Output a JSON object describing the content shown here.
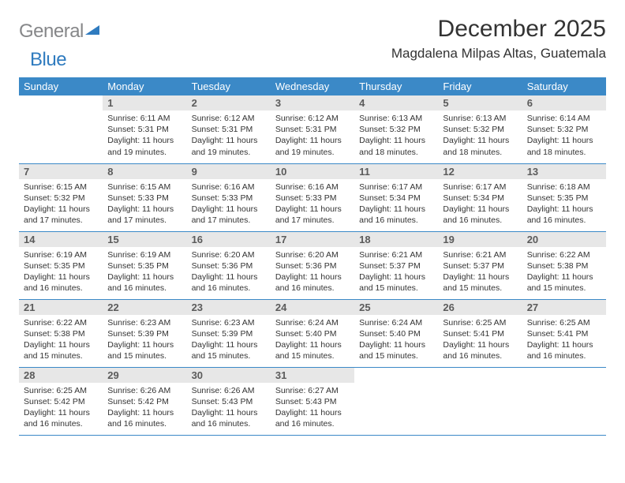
{
  "logo": {
    "gray": "General",
    "blue": "Blue"
  },
  "title": "December 2025",
  "location": "Magdalena Milpas Altas, Guatemala",
  "colors": {
    "header_bg": "#3b89c7",
    "header_text": "#ffffff",
    "daynum_bg": "#e7e7e7",
    "daynum_text": "#5b5b5b",
    "rule": "#3b89c7",
    "logo_gray": "#868789",
    "logo_blue": "#2f7bbf"
  },
  "weekdays": [
    "Sunday",
    "Monday",
    "Tuesday",
    "Wednesday",
    "Thursday",
    "Friday",
    "Saturday"
  ],
  "weeks": [
    [
      {
        "n": "",
        "sr": "",
        "ss": "",
        "dl": ""
      },
      {
        "n": "1",
        "sr": "Sunrise: 6:11 AM",
        "ss": "Sunset: 5:31 PM",
        "dl": "Daylight: 11 hours and 19 minutes."
      },
      {
        "n": "2",
        "sr": "Sunrise: 6:12 AM",
        "ss": "Sunset: 5:31 PM",
        "dl": "Daylight: 11 hours and 19 minutes."
      },
      {
        "n": "3",
        "sr": "Sunrise: 6:12 AM",
        "ss": "Sunset: 5:31 PM",
        "dl": "Daylight: 11 hours and 19 minutes."
      },
      {
        "n": "4",
        "sr": "Sunrise: 6:13 AM",
        "ss": "Sunset: 5:32 PM",
        "dl": "Daylight: 11 hours and 18 minutes."
      },
      {
        "n": "5",
        "sr": "Sunrise: 6:13 AM",
        "ss": "Sunset: 5:32 PM",
        "dl": "Daylight: 11 hours and 18 minutes."
      },
      {
        "n": "6",
        "sr": "Sunrise: 6:14 AM",
        "ss": "Sunset: 5:32 PM",
        "dl": "Daylight: 11 hours and 18 minutes."
      }
    ],
    [
      {
        "n": "7",
        "sr": "Sunrise: 6:15 AM",
        "ss": "Sunset: 5:32 PM",
        "dl": "Daylight: 11 hours and 17 minutes."
      },
      {
        "n": "8",
        "sr": "Sunrise: 6:15 AM",
        "ss": "Sunset: 5:33 PM",
        "dl": "Daylight: 11 hours and 17 minutes."
      },
      {
        "n": "9",
        "sr": "Sunrise: 6:16 AM",
        "ss": "Sunset: 5:33 PM",
        "dl": "Daylight: 11 hours and 17 minutes."
      },
      {
        "n": "10",
        "sr": "Sunrise: 6:16 AM",
        "ss": "Sunset: 5:33 PM",
        "dl": "Daylight: 11 hours and 17 minutes."
      },
      {
        "n": "11",
        "sr": "Sunrise: 6:17 AM",
        "ss": "Sunset: 5:34 PM",
        "dl": "Daylight: 11 hours and 16 minutes."
      },
      {
        "n": "12",
        "sr": "Sunrise: 6:17 AM",
        "ss": "Sunset: 5:34 PM",
        "dl": "Daylight: 11 hours and 16 minutes."
      },
      {
        "n": "13",
        "sr": "Sunrise: 6:18 AM",
        "ss": "Sunset: 5:35 PM",
        "dl": "Daylight: 11 hours and 16 minutes."
      }
    ],
    [
      {
        "n": "14",
        "sr": "Sunrise: 6:19 AM",
        "ss": "Sunset: 5:35 PM",
        "dl": "Daylight: 11 hours and 16 minutes."
      },
      {
        "n": "15",
        "sr": "Sunrise: 6:19 AM",
        "ss": "Sunset: 5:35 PM",
        "dl": "Daylight: 11 hours and 16 minutes."
      },
      {
        "n": "16",
        "sr": "Sunrise: 6:20 AM",
        "ss": "Sunset: 5:36 PM",
        "dl": "Daylight: 11 hours and 16 minutes."
      },
      {
        "n": "17",
        "sr": "Sunrise: 6:20 AM",
        "ss": "Sunset: 5:36 PM",
        "dl": "Daylight: 11 hours and 16 minutes."
      },
      {
        "n": "18",
        "sr": "Sunrise: 6:21 AM",
        "ss": "Sunset: 5:37 PM",
        "dl": "Daylight: 11 hours and 15 minutes."
      },
      {
        "n": "19",
        "sr": "Sunrise: 6:21 AM",
        "ss": "Sunset: 5:37 PM",
        "dl": "Daylight: 11 hours and 15 minutes."
      },
      {
        "n": "20",
        "sr": "Sunrise: 6:22 AM",
        "ss": "Sunset: 5:38 PM",
        "dl": "Daylight: 11 hours and 15 minutes."
      }
    ],
    [
      {
        "n": "21",
        "sr": "Sunrise: 6:22 AM",
        "ss": "Sunset: 5:38 PM",
        "dl": "Daylight: 11 hours and 15 minutes."
      },
      {
        "n": "22",
        "sr": "Sunrise: 6:23 AM",
        "ss": "Sunset: 5:39 PM",
        "dl": "Daylight: 11 hours and 15 minutes."
      },
      {
        "n": "23",
        "sr": "Sunrise: 6:23 AM",
        "ss": "Sunset: 5:39 PM",
        "dl": "Daylight: 11 hours and 15 minutes."
      },
      {
        "n": "24",
        "sr": "Sunrise: 6:24 AM",
        "ss": "Sunset: 5:40 PM",
        "dl": "Daylight: 11 hours and 15 minutes."
      },
      {
        "n": "25",
        "sr": "Sunrise: 6:24 AM",
        "ss": "Sunset: 5:40 PM",
        "dl": "Daylight: 11 hours and 15 minutes."
      },
      {
        "n": "26",
        "sr": "Sunrise: 6:25 AM",
        "ss": "Sunset: 5:41 PM",
        "dl": "Daylight: 11 hours and 16 minutes."
      },
      {
        "n": "27",
        "sr": "Sunrise: 6:25 AM",
        "ss": "Sunset: 5:41 PM",
        "dl": "Daylight: 11 hours and 16 minutes."
      }
    ],
    [
      {
        "n": "28",
        "sr": "Sunrise: 6:25 AM",
        "ss": "Sunset: 5:42 PM",
        "dl": "Daylight: 11 hours and 16 minutes."
      },
      {
        "n": "29",
        "sr": "Sunrise: 6:26 AM",
        "ss": "Sunset: 5:42 PM",
        "dl": "Daylight: 11 hours and 16 minutes."
      },
      {
        "n": "30",
        "sr": "Sunrise: 6:26 AM",
        "ss": "Sunset: 5:43 PM",
        "dl": "Daylight: 11 hours and 16 minutes."
      },
      {
        "n": "31",
        "sr": "Sunrise: 6:27 AM",
        "ss": "Sunset: 5:43 PM",
        "dl": "Daylight: 11 hours and 16 minutes."
      },
      {
        "n": "",
        "sr": "",
        "ss": "",
        "dl": ""
      },
      {
        "n": "",
        "sr": "",
        "ss": "",
        "dl": ""
      },
      {
        "n": "",
        "sr": "",
        "ss": "",
        "dl": ""
      }
    ]
  ]
}
